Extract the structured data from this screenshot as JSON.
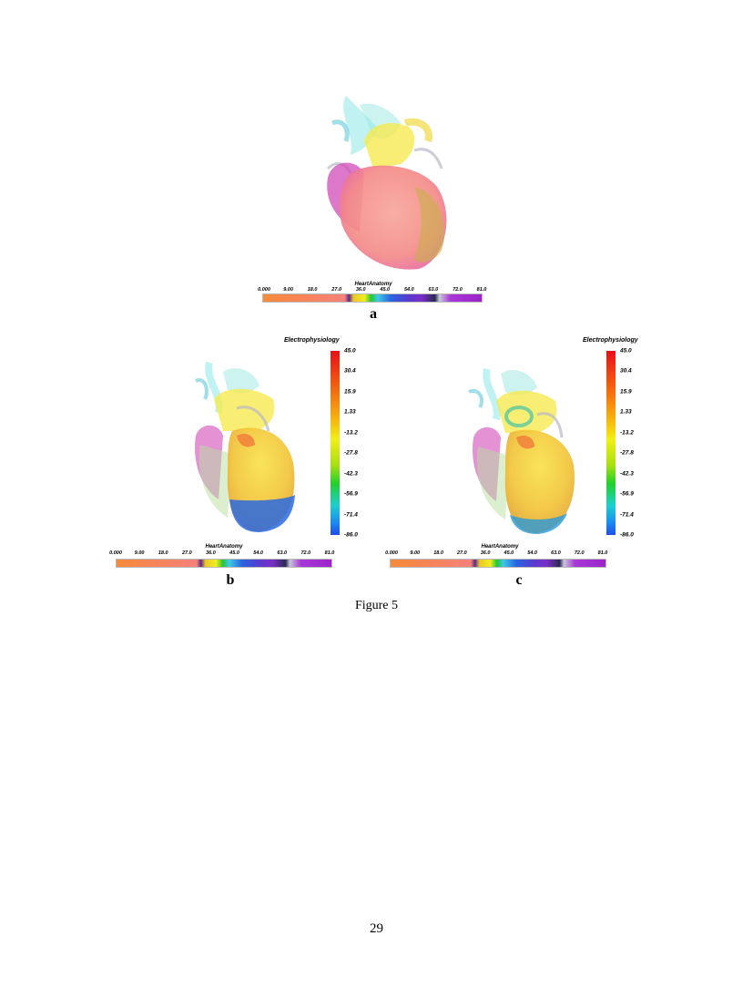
{
  "heart_anatomy_bar": {
    "title": "HeartAnatomy",
    "ticks": [
      "0.000",
      "9.00",
      "18.0",
      "27.0",
      "36.0",
      "45.0",
      "54.0",
      "63.0",
      "72.0",
      "81.0"
    ]
  },
  "electrophysiology_bar": {
    "title": "Electrophysiology",
    "ticks": [
      "45.0",
      "30.4",
      "15.9",
      "1.33",
      "-13.2",
      "-27.8",
      "-42.3",
      "-56.9",
      "-71.4",
      "-86.0"
    ]
  },
  "panels": {
    "a": {
      "label": "a"
    },
    "b": {
      "label": "b"
    },
    "c": {
      "label": "c"
    }
  },
  "caption": "Figure 5",
  "page_number": "29"
}
